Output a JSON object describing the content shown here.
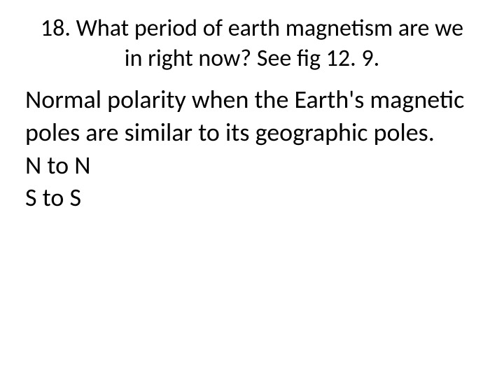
{
  "slide": {
    "title": "18.  What period of earth magnetism are we in right now? See fig 12. 9.",
    "body_line1": "Normal polarity when the Earth's magnetic poles are similar to its geographic poles.",
    "body_line2": "N to N",
    "body_line3": "S to S",
    "colors": {
      "background": "#ffffff",
      "text": "#000000"
    },
    "typography": {
      "title_fontsize": 34,
      "body_fontsize": 36,
      "font_family": "Calibri"
    }
  }
}
